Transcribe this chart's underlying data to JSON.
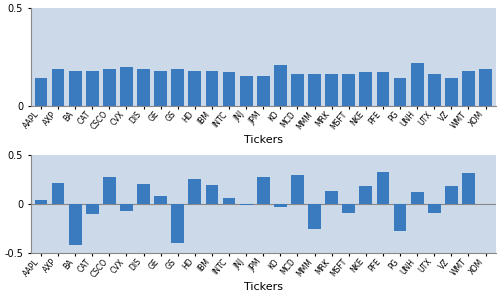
{
  "tickers": [
    "AAPL",
    "AXP",
    "BA",
    "CAT",
    "CSCO",
    "CVX",
    "DIS",
    "GE",
    "GS",
    "HD",
    "IBM",
    "INTC",
    "JNJ",
    "JPM",
    "KO",
    "MCD",
    "MMM",
    "MRK",
    "MSFT",
    "NKE",
    "PFE",
    "PG",
    "UNH",
    "UTX",
    "VZ",
    "WMT",
    "XOM"
  ],
  "panel1_values": [
    0.14,
    0.19,
    0.18,
    0.18,
    0.19,
    0.2,
    0.19,
    0.18,
    0.19,
    0.18,
    0.18,
    0.17,
    0.15,
    0.15,
    0.21,
    0.16,
    0.16,
    0.16,
    0.16,
    0.17,
    0.17,
    0.14,
    0.22,
    0.16,
    0.14,
    0.18,
    0.19
  ],
  "panel2_values": [
    0.04,
    0.22,
    -0.42,
    -0.1,
    0.28,
    -0.07,
    0.21,
    0.08,
    -0.4,
    0.26,
    0.2,
    0.06,
    -0.01,
    0.28,
    -0.03,
    0.3,
    -0.25,
    0.14,
    -0.09,
    0.19,
    0.33,
    -0.27,
    0.13,
    -0.09,
    0.19,
    0.32,
    0.0
  ],
  "bar_color": "#3a7abf",
  "background_color": "#ccd9e8",
  "ylim1": [
    0,
    0.5
  ],
  "ylim2": [
    -0.5,
    0.5
  ],
  "yticks1": [
    0,
    0.5
  ],
  "yticks2": [
    -0.5,
    0,
    0.5
  ],
  "xlabel": "Tickers",
  "figsize": [
    5.0,
    2.96
  ],
  "dpi": 100
}
